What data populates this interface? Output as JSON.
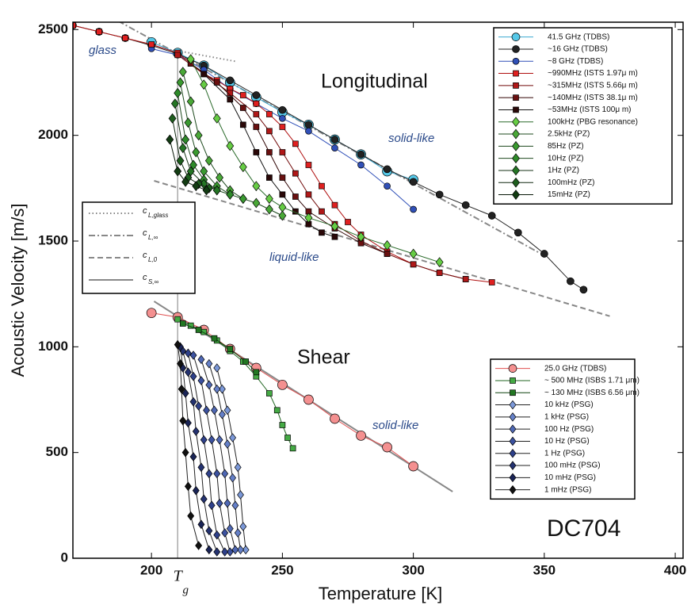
{
  "chart_data": {
    "type": "line",
    "xlabel": "Temperature [K]",
    "ylabel": "Acoustic Velocity [m/s]",
    "xlim": [
      170,
      403
    ],
    "ylim": [
      0,
      2535
    ],
    "xticks": [
      200,
      250,
      300,
      350,
      400
    ],
    "yticks": [
      0,
      500,
      1000,
      1500,
      2000,
      2500
    ],
    "annotations": [
      "Longitudinal",
      "Shear",
      "glass",
      "solid-like",
      "liquid-like",
      "solid-like",
      "DC704"
    ],
    "tg": {
      "label": "T",
      "subscript": "g",
      "x": [
        210,
        210
      ],
      "values": [
        0,
        2390
      ]
    },
    "series": [
      {
        "name": "41.5 GHz (TDBS)",
        "marker": "circle",
        "size": 6,
        "color": "#55c8e8",
        "line": "#3aa8d0",
        "x": [
          200,
          210,
          220,
          230,
          240,
          250,
          260,
          270,
          280,
          290,
          300
        ],
        "values": [
          2440,
          2390,
          2330,
          2250,
          2180,
          2110,
          2050,
          1980,
          1910,
          1830,
          1790
        ]
      },
      {
        "name": "~16 GHz (TDBS)",
        "marker": "circle",
        "size": 4.5,
        "color": "#222222",
        "line": "#222222",
        "x": [
          170,
          180,
          190,
          200,
          210,
          220,
          230,
          240,
          250,
          260,
          270,
          280,
          290,
          300,
          310,
          320,
          330,
          340,
          350,
          360,
          365
        ],
        "values": [
          2520,
          2490,
          2460,
          2425,
          2385,
          2330,
          2260,
          2190,
          2120,
          2050,
          1980,
          1910,
          1840,
          1780,
          1720,
          1670,
          1620,
          1540,
          1440,
          1310,
          1270
        ]
      },
      {
        "name": "~8 GHz (TDBS)",
        "marker": "circle",
        "size": 4,
        "color": "#3050b8",
        "line": "#3050b8",
        "x": [
          200,
          210,
          220,
          230,
          240,
          250,
          260,
          270,
          280,
          290,
          300
        ],
        "values": [
          2410,
          2380,
          2310,
          2220,
          2150,
          2080,
          2020,
          1940,
          1860,
          1760,
          1650
        ]
      },
      {
        "name": "~990MHz (ISTS 1.97μ m)",
        "marker": "square",
        "size": 3.5,
        "color": "#e02020",
        "line": "#b01010",
        "x": [
          170,
          180,
          190,
          200,
          210,
          215,
          220,
          225,
          230,
          235,
          240,
          245,
          250,
          255,
          260,
          265,
          270,
          275,
          280,
          290,
          300,
          310,
          320,
          330
        ],
        "values": [
          2520,
          2490,
          2460,
          2430,
          2390,
          2340,
          2290,
          2260,
          2220,
          2190,
          2150,
          2100,
          2040,
          1960,
          1860,
          1760,
          1670,
          1590,
          1530,
          1450,
          1390,
          1350,
          1320,
          1305
        ]
      },
      {
        "name": "~315MHz (ISTS 5.66μ m)",
        "marker": "square",
        "size": 3.5,
        "color": "#b01818",
        "line": "#700808",
        "x": [
          210,
          220,
          230,
          240,
          245,
          250,
          255,
          260,
          265,
          270,
          280,
          290,
          300,
          310,
          320
        ],
        "values": [
          2380,
          2290,
          2200,
          2100,
          2020,
          1920,
          1820,
          1720,
          1640,
          1580,
          1500,
          1440,
          1390,
          1350,
          1320
        ]
      },
      {
        "name": "~140MHz (ISTS 38.1μ m)",
        "marker": "square",
        "size": 3.5,
        "color": "#6a1010",
        "line": "#300404",
        "x": [
          215,
          225,
          235,
          240,
          245,
          250,
          255,
          260,
          270,
          280,
          290
        ],
        "values": [
          2340,
          2250,
          2130,
          2040,
          1920,
          1800,
          1710,
          1640,
          1560,
          1490,
          1440
        ]
      },
      {
        "name": "~53MHz (ISTS 100μ m)",
        "marker": "square",
        "size": 3.5,
        "color": "#2a0808",
        "line": "#111111",
        "x": [
          220,
          230,
          235,
          240,
          245,
          250,
          255,
          260,
          265,
          270
        ],
        "values": [
          2290,
          2170,
          2050,
          1920,
          1800,
          1720,
          1640,
          1580,
          1540,
          1520
        ]
      },
      {
        "name": "100kHz (PBG resonance)",
        "marker": "diamond",
        "size": 4.5,
        "color": "#66cc44",
        "line": "#2a6a2a",
        "x": [
          215,
          220,
          225,
          230,
          235,
          240,
          245,
          250,
          260,
          270,
          280,
          290,
          300,
          310
        ],
        "values": [
          2360,
          2240,
          2080,
          1950,
          1850,
          1760,
          1700,
          1660,
          1610,
          1570,
          1520,
          1480,
          1440,
          1400
        ]
      },
      {
        "name": "2.5kHz (PZ)",
        "marker": "diamond",
        "size": 4.5,
        "color": "#4aa838",
        "line": "#1e4a1e",
        "x": [
          212,
          215,
          218,
          222,
          226,
          230,
          235,
          240,
          245,
          250
        ],
        "values": [
          2300,
          2160,
          2000,
          1880,
          1800,
          1740,
          1700,
          1680,
          1650,
          1620
        ]
      },
      {
        "name": "85Hz (PZ)",
        "marker": "diamond",
        "size": 4.5,
        "color": "#3a9a30",
        "line": "#1e4a1e",
        "x": [
          211,
          214,
          217,
          220,
          225,
          230,
          235
        ],
        "values": [
          2250,
          2060,
          1920,
          1830,
          1760,
          1720,
          1700
        ]
      },
      {
        "name": "10Hz (PZ)",
        "marker": "diamond",
        "size": 4.5,
        "color": "#2e8a2a",
        "line": "#1e4a1e",
        "x": [
          210,
          213,
          216,
          220,
          225,
          230
        ],
        "values": [
          2200,
          1980,
          1860,
          1790,
          1740,
          1720
        ]
      },
      {
        "name": "1Hz (PZ)",
        "marker": "diamond",
        "size": 4.5,
        "color": "#257525",
        "line": "#143214",
        "x": [
          209,
          212,
          215,
          220,
          225
        ],
        "values": [
          2150,
          1940,
          1830,
          1770,
          1740
        ]
      },
      {
        "name": "100mHz (PZ)",
        "marker": "diamond",
        "size": 4.5,
        "color": "#1d5e1d",
        "line": "#102810",
        "x": [
          208,
          211,
          214,
          218,
          222
        ],
        "values": [
          2080,
          1880,
          1800,
          1770,
          1750
        ]
      },
      {
        "name": "15mHz (PZ)",
        "marker": "diamond",
        "size": 4.5,
        "color": "#133c13",
        "line": "#081808",
        "x": [
          207,
          210,
          213,
          217,
          221
        ],
        "values": [
          1980,
          1830,
          1780,
          1760,
          1740
        ]
      }
    ],
    "shear_series": [
      {
        "name": "25.0 GHz  (TDBS)",
        "marker": "circle",
        "size": 6,
        "color": "#f49090",
        "line": "#e05050",
        "x": [
          200,
          210,
          220,
          230,
          240,
          250,
          260,
          270,
          280,
          290,
          300
        ],
        "values": [
          1160,
          1140,
          1080,
          990,
          900,
          820,
          750,
          660,
          580,
          525,
          435
        ]
      },
      {
        "name": "~ 500 MHz  (ISBS 1.71 μm)",
        "marker": "square",
        "size": 3.5,
        "color": "#44aa44",
        "line": "#226622",
        "x": [
          210,
          215,
          220,
          225,
          230,
          235,
          240,
          245,
          248,
          250,
          252,
          254
        ],
        "values": [
          1130,
          1100,
          1070,
          1030,
          980,
          930,
          860,
          780,
          700,
          630,
          570,
          520
        ]
      },
      {
        "name": "~ 130 MHz  (ISBS 6.56 μm)",
        "marker": "square",
        "size": 3.5,
        "color": "#227722",
        "line": "#114411",
        "x": [
          212,
          218,
          224,
          230,
          236,
          240
        ],
        "values": [
          1110,
          1080,
          1040,
          990,
          930,
          880
        ]
      },
      {
        "name": "10 kHz  (PSG)",
        "marker": "diamond",
        "size": 4,
        "color": "#7b98d8",
        "line": "#222222",
        "x": [
          225,
          227,
          229,
          231,
          233,
          234,
          235,
          236
        ],
        "values": [
          900,
          800,
          700,
          570,
          430,
          300,
          150,
          40
        ]
      },
      {
        "name": "1 kHz  (PSG)",
        "marker": "diamond",
        "size": 4,
        "color": "#6580c8",
        "line": "#222222",
        "x": [
          222,
          225,
          227,
          229,
          231,
          232,
          233,
          234
        ],
        "values": [
          920,
          800,
          680,
          540,
          380,
          250,
          120,
          40
        ]
      },
      {
        "name": "100 Hz  (PSG)",
        "marker": "diamond",
        "size": 4,
        "color": "#4f68b4",
        "line": "#222222",
        "x": [
          219,
          222,
          224,
          226,
          228,
          229,
          230,
          232
        ],
        "values": [
          940,
          820,
          700,
          560,
          400,
          260,
          140,
          40
        ]
      },
      {
        "name": "10 Hz  (PSG)",
        "marker": "diamond",
        "size": 4,
        "color": "#3c52a0",
        "line": "#222222",
        "x": [
          216,
          219,
          221,
          223,
          225,
          226,
          228,
          230
        ],
        "values": [
          960,
          840,
          700,
          560,
          400,
          260,
          120,
          30
        ]
      },
      {
        "name": "1 Hz  (PSG)",
        "marker": "diamond",
        "size": 4,
        "color": "#2e408a",
        "line": "#222222",
        "x": [
          214,
          216,
          218,
          220,
          222,
          223,
          225,
          228
        ],
        "values": [
          970,
          860,
          720,
          560,
          400,
          250,
          110,
          30
        ]
      },
      {
        "name": "100 mHz  (PSG)",
        "marker": "diamond",
        "size": 4,
        "color": "#243270",
        "line": "#222222",
        "x": [
          212,
          214,
          216,
          217,
          219,
          220,
          222,
          225
        ],
        "values": [
          980,
          880,
          740,
          600,
          430,
          280,
          130,
          30
        ]
      },
      {
        "name": "10 mHz  (PSG)",
        "marker": "diamond",
        "size": 4,
        "color": "#1a2456",
        "line": "#222222",
        "x": [
          211,
          212,
          213,
          214,
          216,
          217,
          219,
          222
        ],
        "values": [
          1000,
          900,
          780,
          640,
          480,
          320,
          160,
          40
        ]
      },
      {
        "name": "1 mHz  (PSG)",
        "marker": "diamond",
        "size": 4,
        "color": "#111111",
        "line": "#222222",
        "x": [
          210,
          211,
          211.5,
          212,
          213,
          214,
          215,
          218
        ],
        "values": [
          1010,
          920,
          800,
          650,
          500,
          340,
          200,
          60
        ]
      }
    ],
    "reference_lines": [
      {
        "name": "c",
        "subscript": "L,glass",
        "dash": "1.5 3",
        "color": "#888888",
        "x": [
          210,
          232
        ],
        "values": [
          2400,
          2350
        ]
      },
      {
        "name": "c",
        "subscript": "L,∞",
        "dash": "8 3 2 3",
        "color": "#888888",
        "x": [
          183,
          348
        ],
        "values": [
          2570,
          1445
        ]
      },
      {
        "name": "c",
        "subscript": "L,0",
        "dash": "7 4",
        "color": "#888888",
        "x": [
          201,
          375
        ],
        "values": [
          1785,
          1145
        ]
      },
      {
        "name": "c",
        "subscript": "S,∞",
        "dash": "none",
        "color": "#888888",
        "x": [
          201,
          315
        ],
        "values": [
          1215,
          315
        ]
      }
    ]
  }
}
